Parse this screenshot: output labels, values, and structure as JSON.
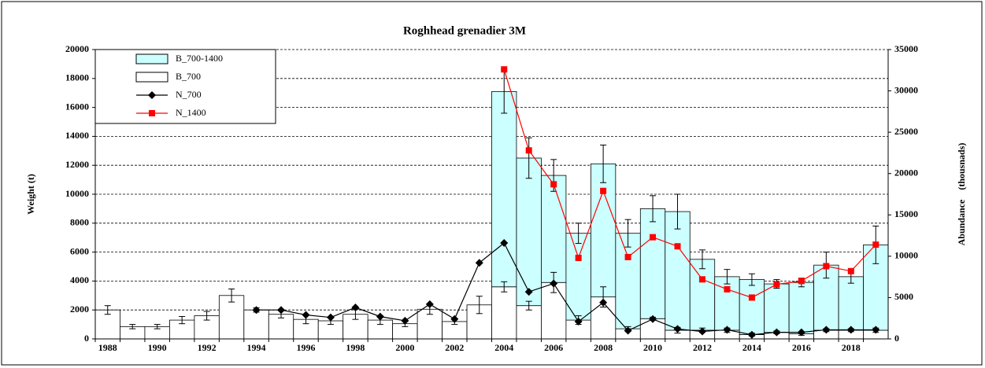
{
  "chart_data": {
    "type": "bar",
    "title": "Roghhead grenadier 3M",
    "y_label": "Weight (t)",
    "y2_label": "Abundance    (thousnads)",
    "categories": [
      "1988",
      null,
      "1990",
      null,
      "1992",
      null,
      "1994",
      null,
      "1996",
      null,
      "1998",
      null,
      "2000",
      null,
      "2002",
      null,
      "2004",
      null,
      "2006",
      null,
      "2008",
      null,
      "2010",
      null,
      "2012",
      null,
      "2014",
      null,
      "2016",
      null,
      "2018",
      null
    ],
    "ylim": [
      0,
      20000
    ],
    "yticks": [
      0,
      2000,
      4000,
      6000,
      8000,
      10000,
      12000,
      14000,
      16000,
      18000,
      20000
    ],
    "y2lim": [
      0,
      35000
    ],
    "y2ticks": [
      0,
      5000,
      10000,
      15000,
      20000,
      25000,
      30000,
      35000
    ],
    "grid": true,
    "series": [
      {
        "name": "B_700-1400",
        "type": "bar",
        "stack": "B",
        "color": "#ccffff",
        "values": [
          null,
          null,
          null,
          null,
          null,
          null,
          null,
          null,
          null,
          null,
          null,
          null,
          null,
          null,
          null,
          null,
          13500,
          10200,
          7400,
          6000,
          9200,
          6600,
          7600,
          8200,
          4900,
          3700,
          3800,
          3350,
          3550,
          4500,
          3700,
          5900
        ],
        "errors": [
          null,
          null,
          null,
          null,
          null,
          null,
          null,
          null,
          null,
          null,
          null,
          null,
          null,
          null,
          null,
          null,
          1500,
          1400,
          1100,
          700,
          1300,
          950,
          900,
          1200,
          650,
          500,
          400,
          300,
          300,
          900,
          450,
          1300
        ]
      },
      {
        "name": "B_700",
        "type": "bar",
        "stack": "B",
        "color": "#ffffff",
        "values": [
          2000,
          850,
          850,
          1300,
          1600,
          3000,
          2000,
          1700,
          1350,
          1250,
          1700,
          1300,
          1050,
          2050,
          1200,
          2350,
          3600,
          2300,
          3900,
          1300,
          2900,
          700,
          1400,
          600,
          600,
          600,
          300,
          450,
          350,
          600,
          600,
          600
        ],
        "errors": [
          300,
          150,
          150,
          250,
          300,
          450,
          150,
          250,
          300,
          250,
          350,
          300,
          200,
          350,
          200,
          600,
          350,
          300,
          700,
          300,
          700,
          150,
          100,
          200,
          150,
          150,
          100,
          100,
          100,
          100,
          100,
          150
        ]
      },
      {
        "name": "N_700",
        "type": "line",
        "axis": "y2",
        "color": "#000000",
        "marker": "diamond",
        "values": [
          null,
          null,
          null,
          null,
          null,
          null,
          3500,
          3500,
          2900,
          2600,
          3800,
          2700,
          2200,
          4200,
          2400,
          9200,
          11600,
          5700,
          6700,
          2100,
          4400,
          1000,
          2400,
          1200,
          900,
          1100,
          500,
          800,
          800,
          1100,
          1100,
          1100
        ]
      },
      {
        "name": "N_1400",
        "type": "line",
        "axis": "y2",
        "color": "#ff0000",
        "marker": "square",
        "values": [
          null,
          null,
          null,
          null,
          null,
          null,
          null,
          null,
          null,
          null,
          null,
          null,
          null,
          null,
          null,
          null,
          32600,
          22800,
          18700,
          9800,
          17900,
          9900,
          12300,
          11200,
          7200,
          6000,
          5000,
          6600,
          7000,
          8800,
          8200,
          11400
        ]
      }
    ]
  }
}
